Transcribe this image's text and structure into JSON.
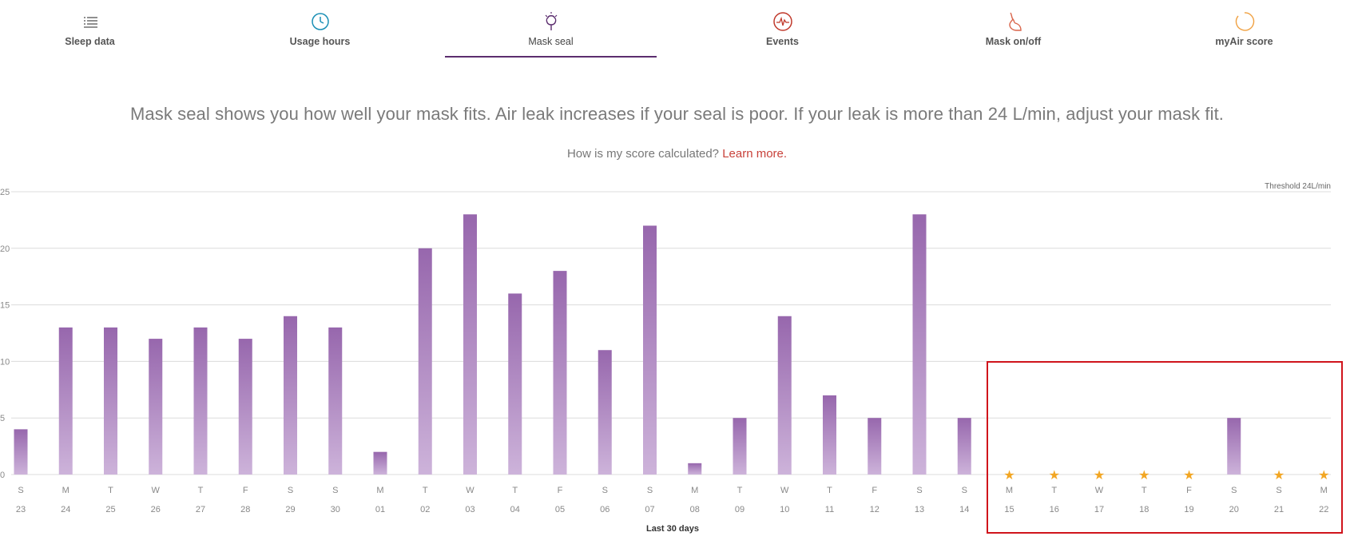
{
  "tabs": [
    {
      "label": "Sleep data",
      "icon": "list-icon",
      "active": false
    },
    {
      "label": "Usage hours",
      "icon": "clock-icon",
      "active": false
    },
    {
      "label": "Mask seal",
      "icon": "mask-seal-icon",
      "active": true
    },
    {
      "label": "Events",
      "icon": "heartbeat-icon",
      "active": false
    },
    {
      "label": "Mask on/off",
      "icon": "face-profile-icon",
      "active": false
    },
    {
      "label": "myAir score",
      "icon": "score-ring-icon",
      "active": false
    }
  ],
  "description": "Mask seal shows you how well your mask fits. Air leak increases if your seal is poor. If your leak is more than 24 L/min, adjust your mask fit.",
  "help": {
    "text": "How is my score calculated?",
    "link": "Learn more."
  },
  "colors": {
    "bar_top": "#9767ad",
    "bar_bottom": "#cdb3da",
    "star": "#f2a623",
    "highlight": "#d0141c",
    "accent": "#5b2d6e"
  },
  "chart_data": {
    "type": "bar",
    "xlabel": "Last 30 days",
    "ylim": [
      0,
      25
    ],
    "yticks": [
      0,
      5,
      10,
      15,
      20,
      25
    ],
    "threshold_label": "Threshold 24L/min",
    "grid": true,
    "days": [
      "S",
      "M",
      "T",
      "W",
      "T",
      "F",
      "S",
      "S",
      "M",
      "T",
      "W",
      "T",
      "F",
      "S",
      "S",
      "M",
      "T",
      "W",
      "T",
      "F",
      "S",
      "S",
      "M",
      "T",
      "W",
      "T",
      "F",
      "S",
      "S",
      "M"
    ],
    "dates": [
      "23",
      "24",
      "25",
      "26",
      "27",
      "28",
      "29",
      "30",
      "01",
      "02",
      "03",
      "04",
      "05",
      "06",
      "07",
      "08",
      "09",
      "10",
      "11",
      "12",
      "13",
      "14",
      "15",
      "16",
      "17",
      "18",
      "19",
      "20",
      "21",
      "22"
    ],
    "values": [
      4,
      13,
      13,
      12,
      13,
      12,
      14,
      13,
      2,
      20,
      23,
      16,
      18,
      11,
      22,
      1,
      5,
      14,
      7,
      5,
      23,
      5,
      null,
      null,
      null,
      null,
      null,
      5,
      null,
      null
    ],
    "no_data_marker": "★"
  }
}
